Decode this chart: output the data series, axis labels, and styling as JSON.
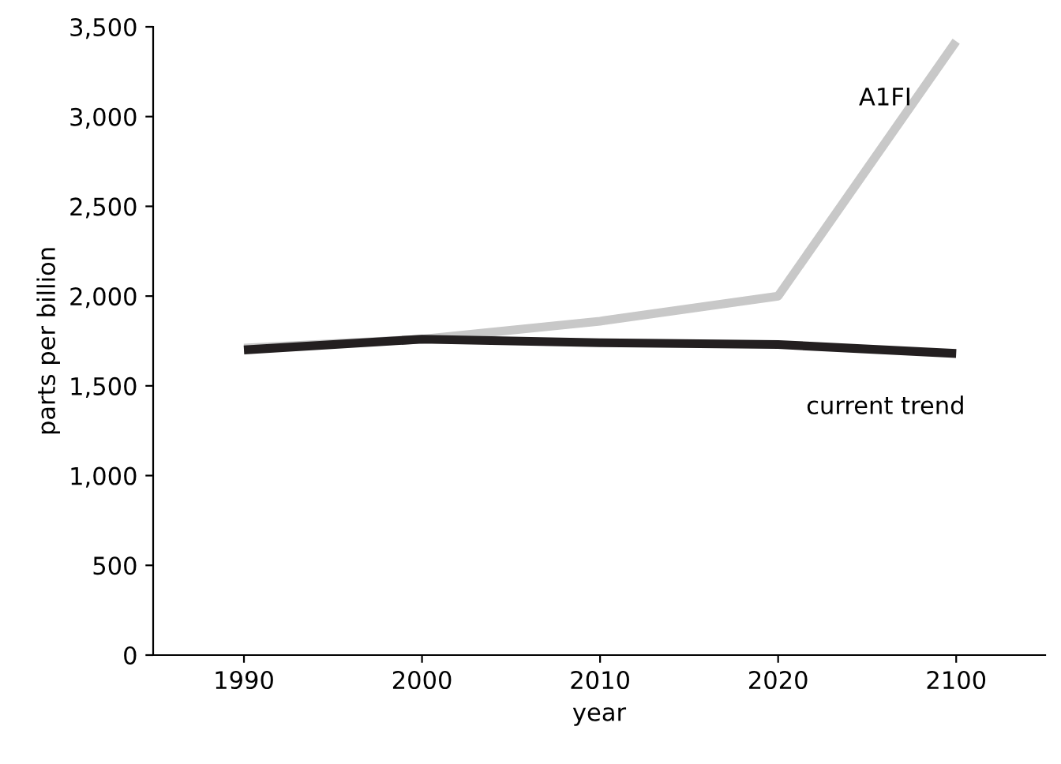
{
  "chart_data": {
    "type": "line",
    "xlabel": "year",
    "ylabel": "parts per billion",
    "categories": [
      "1990",
      "2000",
      "2010",
      "2020",
      "2100"
    ],
    "series": [
      {
        "name": "A1FI",
        "color": "#c8c8c8",
        "values": [
          1710,
          1760,
          1860,
          2000,
          3420
        ]
      },
      {
        "name": "current trend",
        "color": "#231f20",
        "values": [
          1700,
          1760,
          1740,
          1730,
          1680
        ]
      }
    ],
    "ylim": [
      0,
      3500
    ],
    "yticks": [
      {
        "value": 0,
        "label": "0"
      },
      {
        "value": 500,
        "label": "500"
      },
      {
        "value": 1000,
        "label": "1,000"
      },
      {
        "value": 1500,
        "label": "1,500"
      },
      {
        "value": 2000,
        "label": "2,000"
      },
      {
        "value": 2500,
        "label": "2,500"
      },
      {
        "value": 3000,
        "label": "3,000"
      },
      {
        "value": 3500,
        "label": "3,500"
      }
    ],
    "grid": false,
    "legend": false,
    "marker": "none",
    "line_style": "solid"
  }
}
